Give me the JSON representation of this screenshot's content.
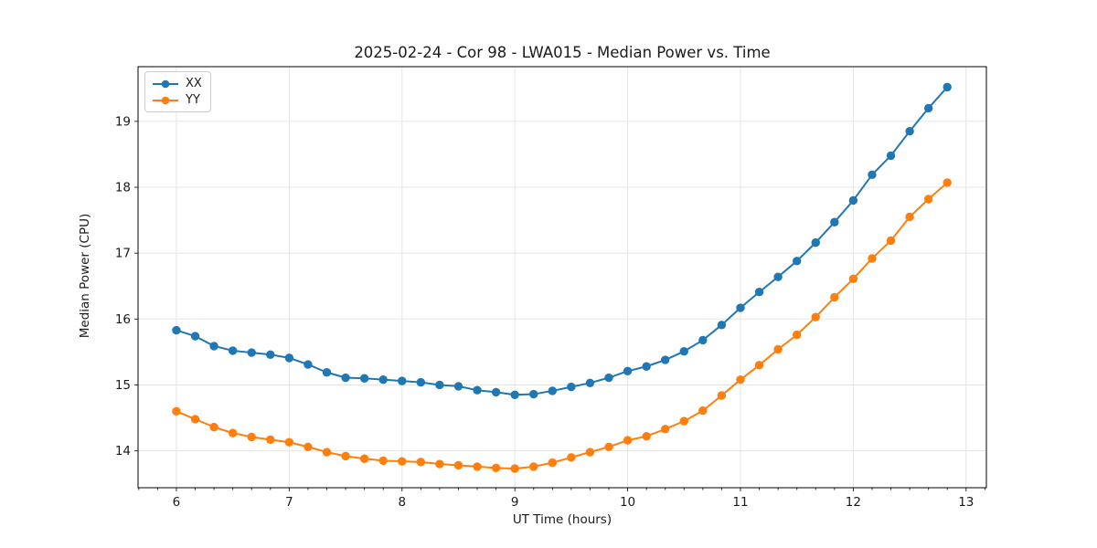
{
  "chart_data": {
    "type": "line",
    "title": "2025-02-24 - Cor 98 - LWA015 - Median Power vs. Time",
    "xlabel": "UT Time (hours)",
    "ylabel": "Median Power (CPU)",
    "xlim": [
      5.66,
      13.18
    ],
    "ylim": [
      13.44,
      19.83
    ],
    "x_ticks": [
      6,
      7,
      8,
      9,
      10,
      11,
      12,
      13
    ],
    "y_ticks": [
      14,
      15,
      16,
      17,
      18,
      19
    ],
    "x_minor_tick_step": 0.16667,
    "grid": true,
    "legend_position": "upper left",
    "grid_color": "#e5e5e5",
    "x": [
      6.0,
      6.1667,
      6.3333,
      6.5,
      6.6667,
      6.8333,
      7.0,
      7.1667,
      7.3333,
      7.5,
      7.6667,
      7.8333,
      8.0,
      8.1667,
      8.3333,
      8.5,
      8.6667,
      8.8333,
      9.0,
      9.1667,
      9.3333,
      9.5,
      9.6667,
      9.8333,
      10.0,
      10.1667,
      10.3333,
      10.5,
      10.6667,
      10.8333,
      11.0,
      11.1667,
      11.3333,
      11.5,
      11.6667,
      11.8333,
      12.0,
      12.1667,
      12.3333,
      12.5,
      12.6667,
      12.8333
    ],
    "series": [
      {
        "name": "XX",
        "color": "#1f77b4",
        "values": [
          15.83,
          15.74,
          15.59,
          15.52,
          15.49,
          15.46,
          15.41,
          15.31,
          15.19,
          15.11,
          15.1,
          15.08,
          15.06,
          15.04,
          15.0,
          14.98,
          14.92,
          14.89,
          14.85,
          14.86,
          14.91,
          14.97,
          15.03,
          15.11,
          15.21,
          15.28,
          15.38,
          15.51,
          15.68,
          15.91,
          16.17,
          16.41,
          16.64,
          16.88,
          17.16,
          17.47,
          17.8,
          18.19,
          18.48,
          18.85,
          19.2,
          19.52
        ]
      },
      {
        "name": "YY",
        "color": "#ff7f0e",
        "values": [
          14.6,
          14.48,
          14.36,
          14.27,
          14.21,
          14.17,
          14.13,
          14.06,
          13.98,
          13.92,
          13.88,
          13.85,
          13.84,
          13.83,
          13.8,
          13.78,
          13.76,
          13.74,
          13.73,
          13.76,
          13.82,
          13.9,
          13.98,
          14.06,
          14.16,
          14.22,
          14.33,
          14.45,
          14.61,
          14.84,
          15.08,
          15.3,
          15.54,
          15.76,
          16.03,
          16.33,
          16.61,
          16.92,
          17.19,
          17.55,
          17.82,
          18.07
        ]
      }
    ]
  }
}
